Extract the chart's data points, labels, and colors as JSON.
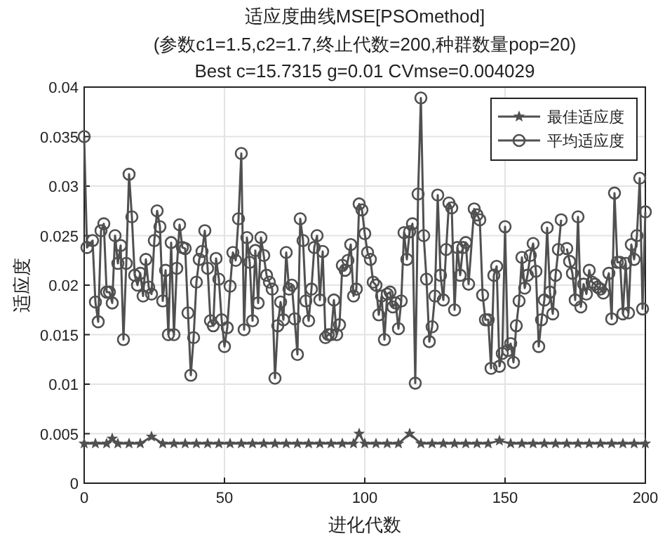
{
  "chart_data": {
    "type": "line",
    "title": "适应度曲线MSE[PSOmethod]",
    "subtitle": "(参数c1=1.5,c2=1.7,终止代数=200,种群数量pop=20)\nBest c=15.7315 g=0.01 CVmse=0.004029",
    "xlabel": "进化代数",
    "ylabel": "适应度",
    "xlim": [
      0,
      200
    ],
    "xticks": [
      0,
      50,
      100,
      150,
      200
    ],
    "ylim": [
      0,
      0.04
    ],
    "yticks": [
      0,
      0.005,
      0.01,
      0.015,
      0.02,
      0.025,
      0.03,
      0.035,
      0.04
    ],
    "grid": true,
    "legend": "top right",
    "series": [
      {
        "name": "最佳适应度",
        "color": "#505050",
        "marker": "star",
        "x": [
          0,
          4,
          8,
          10,
          12,
          16,
          20,
          24,
          28,
          32,
          36,
          40,
          44,
          48,
          52,
          56,
          60,
          64,
          68,
          72,
          76,
          80,
          84,
          88,
          92,
          96,
          98,
          100,
          104,
          108,
          112,
          116,
          120,
          124,
          128,
          132,
          136,
          140,
          144,
          148,
          152,
          156,
          160,
          164,
          168,
          172,
          176,
          180,
          184,
          188,
          192,
          196,
          200
        ],
        "values": [
          0.004,
          0.004,
          0.004,
          0.0045,
          0.004,
          0.004,
          0.004,
          0.0047,
          0.004,
          0.004,
          0.004,
          0.004,
          0.004,
          0.004,
          0.004,
          0.004,
          0.004,
          0.004,
          0.004,
          0.004,
          0.004,
          0.004,
          0.004,
          0.004,
          0.004,
          0.004,
          0.005,
          0.004,
          0.004,
          0.004,
          0.004,
          0.005,
          0.004,
          0.004,
          0.004,
          0.004,
          0.004,
          0.004,
          0.004,
          0.0043,
          0.004,
          0.004,
          0.004,
          0.004,
          0.004,
          0.004,
          0.004,
          0.004,
          0.004,
          0.004,
          0.004,
          0.004,
          0.004
        ]
      },
      {
        "name": "平均适应度",
        "color": "#505050",
        "marker": "circle",
        "x": [
          0,
          1,
          3,
          4,
          5,
          6,
          7,
          8,
          9,
          10,
          11,
          12,
          13,
          14,
          15,
          16,
          17,
          18,
          19,
          20,
          21,
          22,
          23,
          24,
          25,
          26,
          27,
          28,
          29,
          30,
          31,
          32,
          33,
          34,
          35,
          36,
          37,
          38,
          39,
          40,
          41,
          42,
          43,
          44,
          45,
          46,
          47,
          48,
          49,
          50,
          51,
          52,
          53,
          54,
          55,
          56,
          57,
          58,
          59,
          60,
          61,
          62,
          63,
          64,
          65,
          66,
          67,
          68,
          69,
          70,
          71,
          72,
          73,
          74,
          75,
          76,
          77,
          78,
          79,
          80,
          81,
          82,
          83,
          84,
          85,
          86,
          87,
          88,
          89,
          90,
          91,
          92,
          93,
          94,
          95,
          96,
          97,
          98,
          99,
          100,
          101,
          102,
          103,
          104,
          105,
          106,
          107,
          108,
          109,
          110,
          111,
          112,
          113,
          114,
          115,
          116,
          117,
          118,
          119,
          120,
          121,
          122,
          123,
          124,
          125,
          126,
          127,
          128,
          129,
          130,
          131,
          132,
          133,
          134,
          135,
          136,
          137,
          139,
          140,
          141,
          142,
          143,
          144,
          145,
          146,
          147,
          148,
          149,
          150,
          151,
          152,
          153,
          154,
          155,
          156,
          157,
          158,
          159,
          160,
          161,
          162,
          163,
          164,
          165,
          166,
          167,
          168,
          169,
          170,
          171,
          172,
          173,
          174,
          175,
          176,
          177,
          178,
          179,
          180,
          181,
          182,
          183,
          184,
          185,
          187,
          188,
          189,
          190,
          191,
          192,
          193,
          194,
          195,
          196,
          197,
          198,
          199,
          200
        ],
        "values": [
          0.035,
          0.0238,
          0.0245,
          0.0183,
          0.0163,
          0.0255,
          0.0262,
          0.0193,
          0.0193,
          0.0182,
          0.025,
          0.0222,
          0.024,
          0.0145,
          0.0222,
          0.0312,
          0.0269,
          0.021,
          0.02,
          0.0212,
          0.0189,
          0.0226,
          0.0198,
          0.0191,
          0.0245,
          0.0275,
          0.0259,
          0.0184,
          0.0215,
          0.015,
          0.0243,
          0.015,
          0.0217,
          0.0261,
          0.0238,
          0.0237,
          0.0172,
          0.0109,
          0.0147,
          0.0203,
          0.0226,
          0.0234,
          0.0255,
          0.0217,
          0.0164,
          0.0159,
          0.0227,
          0.0206,
          0.0165,
          0.0138,
          0.0157,
          0.0199,
          0.0233,
          0.0225,
          0.0267,
          0.0333,
          0.0155,
          0.0248,
          0.0223,
          0.0164,
          0.0235,
          0.0182,
          0.0248,
          0.023,
          0.021,
          0.0203,
          0.0196,
          0.0106,
          0.0159,
          0.0183,
          0.0165,
          0.0233,
          0.0196,
          0.02,
          0.0166,
          0.013,
          0.0267,
          0.0245,
          0.0184,
          0.0164,
          0.0196,
          0.0238,
          0.025,
          0.0185,
          0.0234,
          0.0147,
          0.015,
          0.015,
          0.0185,
          0.015,
          0.016,
          0.022,
          0.0215,
          0.0225,
          0.0241,
          0.0189,
          0.0196,
          0.0282,
          0.0276,
          0.0252,
          0.0233,
          0.0226,
          0.0203,
          0.02,
          0.017,
          0.0189,
          0.0145,
          0.0191,
          0.0193,
          0.0178,
          0.0182,
          0.0156,
          0.0184,
          0.0253,
          0.0226,
          0.0254,
          0.0262,
          0.0101,
          0.0292,
          0.0389,
          0.025,
          0.0206,
          0.0143,
          0.0158,
          0.0189,
          0.0291,
          0.021,
          0.0185,
          0.0236,
          0.0283,
          0.0278,
          0.0175,
          0.0238,
          0.021,
          0.0238,
          0.0243,
          0.0201,
          0.0277,
          0.0271,
          0.0266,
          0.019,
          0.0165,
          0.0165,
          0.0116,
          0.021,
          0.0219,
          0.0118,
          0.0131,
          0.0259,
          0.0134,
          0.0141,
          0.0122,
          0.0159,
          0.0184,
          0.0228,
          0.0197,
          0.021,
          0.023,
          0.0242,
          0.0214,
          0.0138,
          0.0165,
          0.0185,
          0.0258,
          0.0193,
          0.0171,
          0.021,
          0.0236,
          0.0266,
          null,
          0.0237,
          0.0224,
          0.0212,
          0.0185,
          0.0269,
          0.0178,
          0.0201,
          0.0191,
          0.0215,
          0.0203,
          0.0201,
          0.0198,
          0.0196,
          0.0192,
          0.0212,
          0.0166,
          0.0293,
          0.0223,
          0.0223,
          0.0171,
          0.0222,
          0.0172,
          0.0241,
          0.0226,
          0.025,
          0.0308,
          0.0176,
          0.0274
        ]
      }
    ]
  }
}
